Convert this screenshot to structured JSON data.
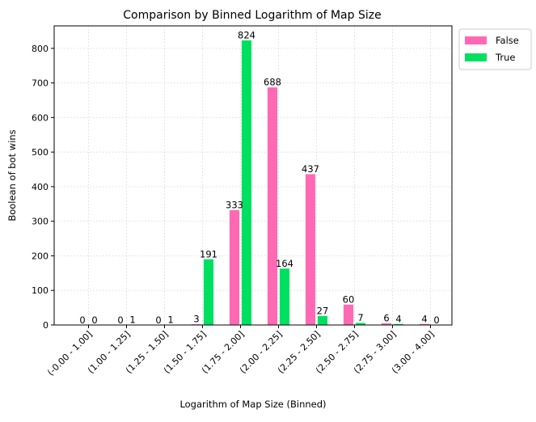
{
  "chart_data": {
    "type": "bar",
    "title": "Comparison by Binned Logarithm of Map Size",
    "xlabel": "Logarithm of Map Size (Binned)",
    "ylabel": "Boolean of bot wins",
    "categories": [
      "(-0.00 - 1.00]",
      "(1.00 - 1.25]",
      "(1.25 - 1.50]",
      "(1.50 - 1.75]",
      "(1.75 - 2.00]",
      "(2.00 - 2.25]",
      "(2.25 - 2.50]",
      "(2.50 - 2.75]",
      "(2.75 - 3.00]",
      "(3.00 - 4.00]"
    ],
    "series": [
      {
        "name": "False",
        "color": "#ff69b4",
        "values": [
          0,
          0,
          0,
          3,
          333,
          688,
          437,
          60,
          6,
          4
        ]
      },
      {
        "name": "True",
        "color": "#00e060",
        "values": [
          0,
          1,
          1,
          191,
          824,
          164,
          27,
          7,
          4,
          0
        ]
      }
    ],
    "ylim": [
      0,
      865
    ],
    "yticks": [
      0,
      100,
      200,
      300,
      400,
      500,
      600,
      700,
      800
    ],
    "grid": true,
    "legend_position": "outside-top-right"
  }
}
